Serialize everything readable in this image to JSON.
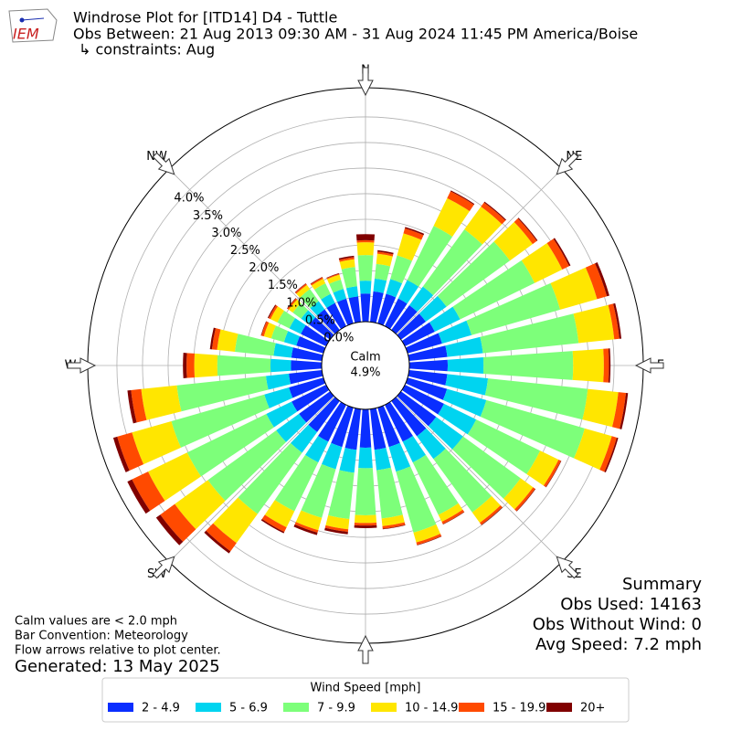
{
  "logo_text": "IEM",
  "chart_data": {
    "type": "windrose",
    "title": "Windrose Plot for [ITD14] D4 - Tuttle",
    "subtitle": "Obs Between: 21 Aug 2013 09:30 AM - 31 Aug 2024 11:45 PM America/Boise",
    "constraint": "↳ constraints: Aug",
    "directions": [
      0,
      10,
      20,
      30,
      40,
      50,
      60,
      70,
      80,
      90,
      100,
      110,
      120,
      130,
      140,
      150,
      160,
      170,
      180,
      190,
      200,
      210,
      220,
      230,
      240,
      250,
      260,
      270,
      280,
      290,
      300,
      310,
      320,
      330,
      340,
      350
    ],
    "xticks": [
      {
        "value": 0,
        "label": "N"
      },
      {
        "value": 45,
        "label": "NE"
      },
      {
        "value": 90,
        "label": "E"
      },
      {
        "value": 135,
        "label": "SE"
      },
      {
        "value": 180,
        "label": "S"
      },
      {
        "value": 225,
        "label": "SW"
      },
      {
        "value": 270,
        "label": "W"
      },
      {
        "value": 315,
        "label": "NW"
      }
    ],
    "rlim": [
      0,
      4.57
    ],
    "rticks": [
      {
        "value": 0,
        "label": "0.0%"
      },
      {
        "value": 0.5,
        "label": "0.5%"
      },
      {
        "value": 1,
        "label": "1.0%"
      },
      {
        "value": 1.5,
        "label": "1.5%"
      },
      {
        "value": 2,
        "label": "2.0%"
      },
      {
        "value": 2.5,
        "label": "2.5%"
      },
      {
        "value": 3,
        "label": "3.0%"
      },
      {
        "value": 3.5,
        "label": "3.5%"
      },
      {
        "value": 4,
        "label": "4.0%"
      }
    ],
    "grid": true,
    "calm": {
      "label": "Calm",
      "value": 4.9,
      "value_label": "4.9%"
    },
    "legend_title": "Wind Speed [mph]",
    "series": [
      {
        "name": "2 - 4.9",
        "color": "#0a2eff",
        "values": [
          0.55,
          0.6,
          0.6,
          0.6,
          0.6,
          0.6,
          0.65,
          0.7,
          0.75,
          0.75,
          0.75,
          0.8,
          0.85,
          0.85,
          0.85,
          0.8,
          0.8,
          0.8,
          0.75,
          0.8,
          0.8,
          0.8,
          0.75,
          0.75,
          0.75,
          0.7,
          0.65,
          0.6,
          0.6,
          0.55,
          0.55,
          0.5,
          0.5,
          0.5,
          0.5,
          0.5
        ]
      },
      {
        "name": "5 - 6.9",
        "color": "#00d4f0",
        "values": [
          0.25,
          0.25,
          0.3,
          0.4,
          0.45,
          0.5,
          0.55,
          0.6,
          0.7,
          0.7,
          0.8,
          0.8,
          0.7,
          0.65,
          0.55,
          0.45,
          0.5,
          0.4,
          0.4,
          0.45,
          0.45,
          0.45,
          0.5,
          0.55,
          0.55,
          0.5,
          0.45,
          0.4,
          0.35,
          0.25,
          0.25,
          0.2,
          0.2,
          0.2,
          0.2,
          0.2
        ]
      },
      {
        "name": "7 - 9.9",
        "color": "#7dff7a",
        "values": [
          0.5,
          0.29,
          0.48,
          1.18,
          1.38,
          1.53,
          1.62,
          1.8,
          1.88,
          1.75,
          1.96,
          2.0,
          1.39,
          1.39,
          1.29,
          1.14,
          1.24,
          0.95,
          0.92,
          0.91,
          0.99,
          1.06,
          1.48,
          1.65,
          1.72,
          1.89,
          1.75,
          1.04,
          0.76,
          0.26,
          0.26,
          0.2,
          0.29,
          0.23,
          0.19,
          0.38
        ]
      },
      {
        "name": "10 - 14.9",
        "color": "#ffe600",
        "values": [
          0.25,
          0.2,
          0.45,
          0.6,
          0.55,
          0.55,
          0.6,
          0.75,
          0.7,
          0.6,
          0.6,
          0.55,
          0.4,
          0.3,
          0.25,
          0.15,
          0.2,
          0.15,
          0.15,
          0.2,
          0.25,
          0.35,
          0.7,
          0.8,
          0.85,
          0.8,
          0.7,
          0.45,
          0.35,
          0.15,
          0.15,
          0.1,
          0.1,
          0.1,
          0.1,
          0.15
        ]
      },
      {
        "name": "15 - 19.9",
        "color": "#ff4a00",
        "values": [
          0.04,
          0.04,
          0.1,
          0.15,
          0.1,
          0.1,
          0.15,
          0.2,
          0.1,
          0.1,
          0.15,
          0.1,
          0.05,
          0.05,
          0.05,
          0.05,
          0.05,
          0.05,
          0.05,
          0.05,
          0.05,
          0.1,
          0.2,
          0.35,
          0.35,
          0.3,
          0.2,
          0.15,
          0.1,
          0.05,
          0.04,
          0.03,
          0.03,
          0.03,
          0.02,
          0.04
        ]
      },
      {
        "name": "20+",
        "color": "#800000",
        "values": [
          0.12,
          0.03,
          0.03,
          0.02,
          0.02,
          0.02,
          0.03,
          0.05,
          0.04,
          0.03,
          0.04,
          0.03,
          0.01,
          0.01,
          0.01,
          0.01,
          0.01,
          0.01,
          0.05,
          0.05,
          0.05,
          0.03,
          0.05,
          0.1,
          0.1,
          0.08,
          0.07,
          0.07,
          0.04,
          0.01,
          0.02,
          0.01,
          0.01,
          0.01,
          0.01,
          0.03
        ]
      }
    ],
    "summary": [
      "Summary",
      "Obs Used: 14163",
      "Obs Without Wind: 0",
      "Avg Speed: 7.2 mph"
    ],
    "notes": [
      "Calm values are < 2.0 mph",
      "Bar Convention: Meteorology",
      "Flow arrows relative to plot center."
    ],
    "generated": "Generated: 13 May 2025"
  }
}
